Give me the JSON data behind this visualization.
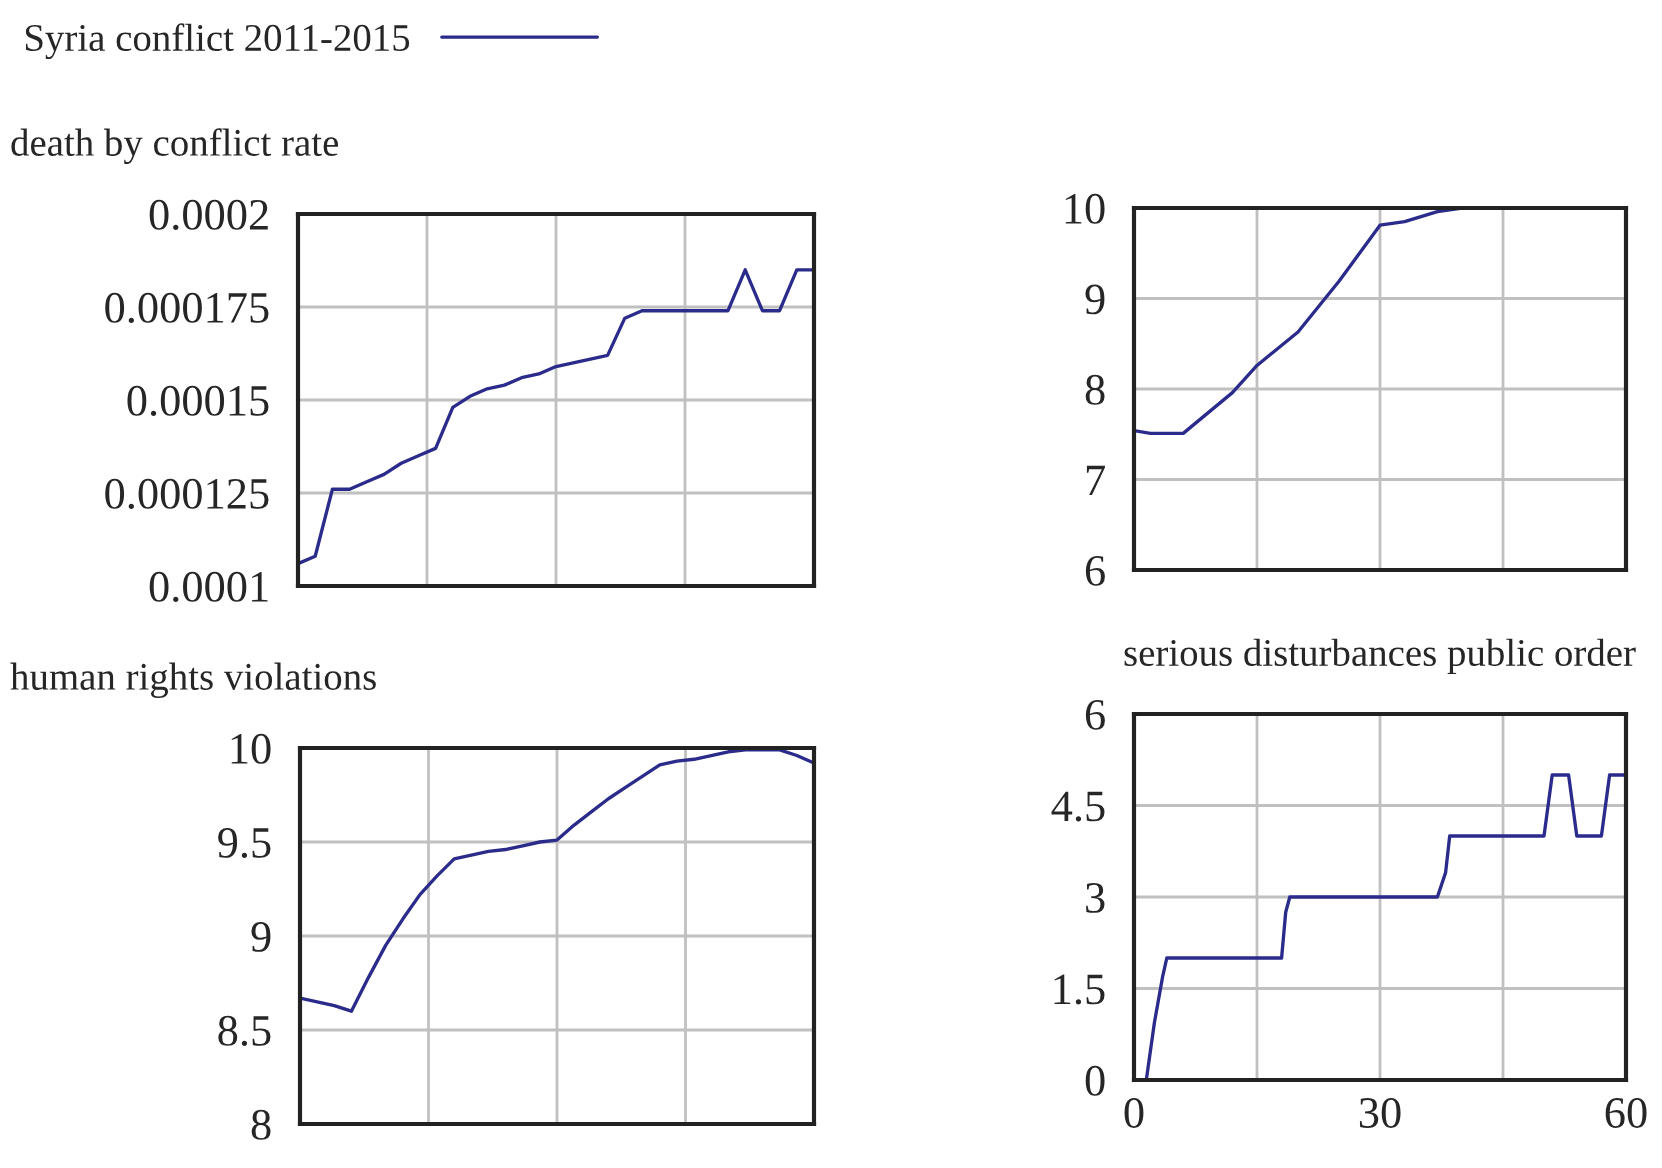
{
  "chart_data": [
    {
      "type": "line",
      "title": "death by conflict rate",
      "legend": "top left",
      "grid": true,
      "tick_labels": "y",
      "categories": [
        null,
        null,
        null,
        null,
        null,
        null,
        null,
        null,
        null,
        null,
        null,
        null,
        null,
        null,
        null,
        null,
        null,
        null,
        null,
        null,
        null,
        null,
        null,
        null,
        null,
        null,
        null,
        null,
        null,
        null,
        null
      ],
      "ylim": [
        0.0001,
        0.0002
      ],
      "yticks": [
        0.0001,
        0.000125,
        0.00015,
        0.000175,
        0.0002
      ],
      "series": [
        {
          "name": "Syria conflict 2011-2015",
          "color": "#2b2b8c",
          "values": [
            0.000106,
            0.000108,
            0.000126,
            0.000126,
            0.000128,
            0.00013,
            0.000133,
            0.000135,
            0.000137,
            0.000148,
            0.000151,
            0.000153,
            0.000154,
            0.000156,
            0.000157,
            0.000159,
            0.00016,
            0.000161,
            0.000162,
            0.000172,
            0.000174,
            0.000174,
            0.000174,
            0.000174,
            0.000174,
            0.000174,
            0.000185,
            0.000174,
            0.000174,
            0.000185,
            0.000185
          ]
        }
      ]
    },
    {
      "type": "line",
      "grid": true,
      "tick_labels": "y",
      "xlim": [
        0,
        60
      ],
      "xticks": [
        {
          "value": 0,
          "label": null
        },
        {
          "value": 15,
          "label": null
        },
        {
          "value": 30,
          "label": null
        },
        {
          "value": 45,
          "label": null
        },
        {
          "value": 60,
          "label": null
        }
      ],
      "ylim": [
        6,
        10
      ],
      "yticks": [
        6,
        7,
        8,
        9,
        10
      ],
      "series": [
        {
          "color": "#2b2b8c",
          "x": [
            0,
            2,
            6,
            12,
            15,
            20,
            25,
            30,
            33,
            37,
            40,
            60
          ],
          "values": [
            7.54,
            7.51,
            7.51,
            7.96,
            8.26,
            8.63,
            9.19,
            9.81,
            9.85,
            9.96,
            10,
            10
          ]
        }
      ]
    },
    {
      "type": "line",
      "title": "human rights violations",
      "grid": true,
      "tick_labels": "y",
      "categories": [
        null,
        null,
        null,
        null,
        null,
        null,
        null,
        null,
        null,
        null,
        null,
        null,
        null,
        null,
        null,
        null,
        null,
        null,
        null,
        null,
        null,
        null,
        null,
        null,
        null,
        null,
        null,
        null,
        null,
        null,
        null
      ],
      "ylim": [
        8,
        10
      ],
      "yticks": [
        8,
        8.5,
        9,
        9.5,
        10
      ],
      "series": [
        {
          "color": "#2b2b8c",
          "values": [
            8.67,
            8.65,
            8.63,
            8.6,
            8.78,
            8.95,
            9.09,
            9.22,
            9.32,
            9.41,
            9.43,
            9.45,
            9.46,
            9.48,
            9.5,
            9.51,
            9.59,
            9.66,
            9.73,
            9.79,
            9.85,
            9.91,
            9.93,
            9.94,
            9.96,
            9.98,
            9.99,
            9.99,
            9.99,
            9.96,
            9.92
          ]
        }
      ]
    },
    {
      "type": "line",
      "title": "serious disturbances public order",
      "grid": true,
      "xlim": [
        0,
        60
      ],
      "xticks": [
        0,
        {
          "value": 15,
          "label": null
        },
        30,
        {
          "value": 45,
          "label": null
        },
        60
      ],
      "ylim": [
        0,
        6
      ],
      "yticks": [
        0,
        1.5,
        3,
        4.5,
        6
      ],
      "series": [
        {
          "color": "#2b2b8c",
          "x": [
            0,
            1.5,
            2.5,
            3.5,
            4,
            18,
            18.5,
            19,
            37,
            38,
            38.5,
            50,
            51,
            53,
            54,
            57,
            58,
            60
          ],
          "values": [
            0,
            0,
            0.95,
            1.7,
            2,
            2,
            2.75,
            3,
            3,
            3.4,
            4,
            4,
            5,
            5,
            4,
            4,
            5,
            5
          ]
        }
      ]
    }
  ]
}
